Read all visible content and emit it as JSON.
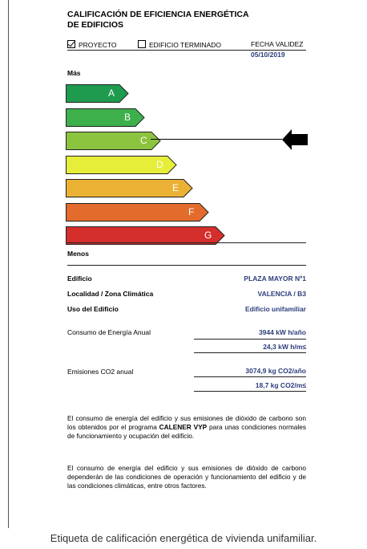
{
  "title_lines": [
    "CALIFICACIÓN DE EFICIENCIA ENERGÉTICA",
    "DE EDIFICIOS"
  ],
  "checkboxes": [
    {
      "label": "PROYECTO",
      "checked": true
    },
    {
      "label": "EDIFICIO TERMINADO",
      "checked": false
    }
  ],
  "validity": {
    "label": "FECHA VALIDEZ",
    "date": "05/10/2019"
  },
  "scale": {
    "top": "Más",
    "bottom": "Menos"
  },
  "ratings": [
    {
      "letter": "A",
      "color": "#1e9b4e"
    },
    {
      "letter": "B",
      "color": "#3db04b"
    },
    {
      "letter": "C",
      "color": "#8cc43f"
    },
    {
      "letter": "D",
      "color": "#e7ee3a"
    },
    {
      "letter": "E",
      "color": "#ebb135"
    },
    {
      "letter": "F",
      "color": "#e36b2c"
    },
    {
      "letter": "G",
      "color": "#d42f2c"
    }
  ],
  "current_rating": "C",
  "building": {
    "edificio_label": "Edificio",
    "edificio_value": "PLAZA MAYOR Nº1",
    "localidad_label": "Localidad / Zona Climática",
    "localidad_value": "VALENCIA / B3",
    "uso_label": "Uso del Edificio",
    "uso_value": "Edificio unifamiliar"
  },
  "energy": {
    "label": "Consumo de Energía Anual",
    "value_total": "3944 kW h/año",
    "value_per_m2": "24,3 kW h/m≤"
  },
  "emissions": {
    "label": "Emisiones CO2 anual",
    "value_total": "3074,9 kg CO2/año",
    "value_per_m2": "18,7 kg CO2/m≤"
  },
  "paragraph1": {
    "before": "El consumo de energía del edificio y sus emisiones de dióxido de carbono son los obtenidos por el programa ",
    "bold": "CALENER VYP",
    "after": " para unas condiciones normales de funcionamiento y ocupación del edificio."
  },
  "paragraph2": "El consumo de energía del edificio y sus emisiones de dióxido de carbono dependerán de las condiciones de operación y funcionamiento del edificio y de las condiciones climáticas, entre otros factores.",
  "caption": "Etiqueta de calificación energética de vivienda unifamiliar."
}
